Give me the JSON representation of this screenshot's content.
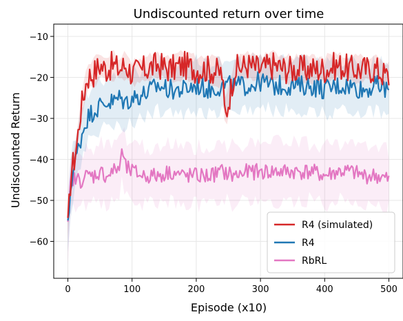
{
  "chart_data": {
    "type": "line",
    "title": "Undiscounted return over time",
    "xlabel": "Episode (x10)",
    "ylabel": "Undiscounted Return",
    "xlim": [
      -22,
      522
    ],
    "ylim": [
      -69,
      -7
    ],
    "xticks": [
      0,
      100,
      200,
      300,
      400,
      500
    ],
    "yticks": [
      -60,
      -50,
      -40,
      -30,
      -20,
      -10
    ],
    "xtick_labels": [
      "0",
      "100",
      "200",
      "300",
      "400",
      "500"
    ],
    "ytick_labels": [
      "−60",
      "−50",
      "−40",
      "−30",
      "−20",
      "−10"
    ],
    "grid": true,
    "legend_position": "lower-right",
    "series": [
      {
        "name": "R4 (simulated)",
        "color": "#d62728",
        "x": [
          0,
          5,
          10,
          15,
          20,
          25,
          30,
          40,
          50,
          60,
          70,
          80,
          90,
          100,
          120,
          140,
          160,
          180,
          200,
          220,
          240,
          245,
          260,
          280,
          300,
          320,
          340,
          360,
          380,
          400,
          420,
          440,
          460,
          480,
          500
        ],
        "y": [
          -57,
          -43,
          -40,
          -35,
          -28,
          -24,
          -20,
          -19,
          -17,
          -18,
          -17,
          -18,
          -17,
          -19,
          -18,
          -17,
          -18,
          -17,
          -18,
          -18,
          -19,
          -30,
          -18,
          -17,
          -18,
          -17,
          -18,
          -18,
          -18,
          -18,
          -17,
          -18,
          -18,
          -18,
          -20
        ]
      },
      {
        "name": "R4",
        "color": "#1f77b4",
        "x": [
          0,
          5,
          10,
          15,
          20,
          25,
          30,
          40,
          50,
          60,
          70,
          80,
          90,
          100,
          120,
          140,
          160,
          180,
          200,
          220,
          240,
          260,
          280,
          300,
          320,
          340,
          360,
          380,
          400,
          420,
          440,
          460,
          480,
          500
        ],
        "y": [
          -57,
          -45,
          -42,
          -38,
          -35,
          -32,
          -30,
          -28,
          -27,
          -26,
          -26,
          -25,
          -26,
          -25,
          -24,
          -22,
          -23,
          -23,
          -22,
          -23,
          -22,
          -22,
          -22,
          -21,
          -22,
          -22,
          -22,
          -22,
          -23,
          -22,
          -22,
          -23,
          -22,
          -23
        ]
      },
      {
        "name": "RbRL",
        "color": "#e377c2",
        "x": [
          0,
          5,
          10,
          20,
          30,
          40,
          50,
          60,
          70,
          80,
          85,
          90,
          100,
          120,
          140,
          160,
          180,
          200,
          220,
          240,
          260,
          280,
          300,
          320,
          340,
          360,
          380,
          400,
          420,
          440,
          460,
          480,
          500
        ],
        "y": [
          -57,
          -44,
          -45,
          -45,
          -44,
          -44,
          -43,
          -44,
          -43,
          -42,
          -38,
          -42,
          -43,
          -44,
          -44,
          -43,
          -44,
          -44,
          -44,
          -43,
          -44,
          -43,
          -43,
          -43,
          -43,
          -43,
          -43,
          -44,
          -43,
          -43,
          -44,
          -44,
          -45
        ]
      }
    ]
  }
}
